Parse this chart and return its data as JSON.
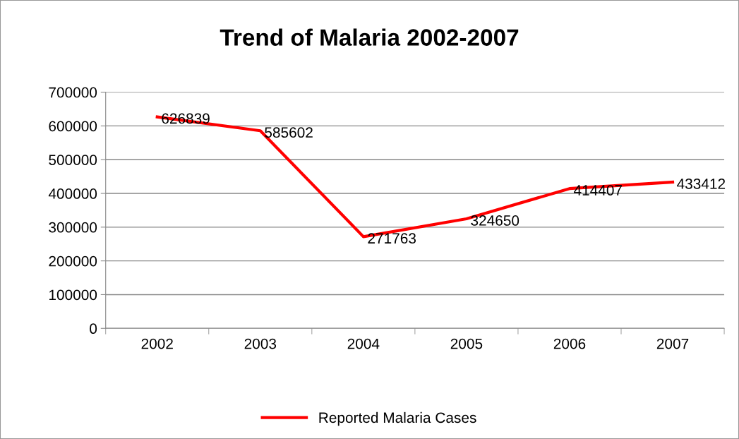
{
  "chart_data": {
    "type": "line",
    "title": "Trend of Malaria 2002-2007",
    "categories": [
      "2002",
      "2003",
      "2004",
      "2005",
      "2006",
      "2007"
    ],
    "series": [
      {
        "name": "Reported Malaria Cases",
        "color": "#ff0000",
        "values": [
          626839,
          585602,
          271763,
          324650,
          414407,
          433412
        ]
      }
    ],
    "ylim": [
      0,
      700000
    ],
    "yticks": [
      0,
      100000,
      200000,
      300000,
      400000,
      500000,
      600000,
      700000
    ],
    "grid": "y",
    "legend": "bottom",
    "data_labels": true,
    "marker": "none",
    "line_style": "solid"
  }
}
